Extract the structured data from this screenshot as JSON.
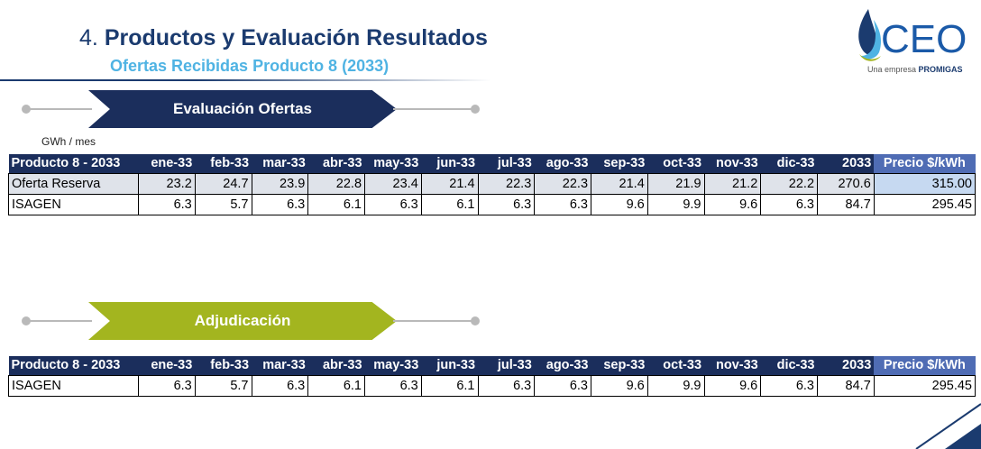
{
  "header": {
    "number": "4.",
    "title": "Productos y Evaluación Resultados",
    "subtitle": "Ofertas Recibidas Producto 8  (2033)"
  },
  "logo": {
    "text": "CEO",
    "tagline_prefix": "Una empresa ",
    "tagline_brand": "PROMIGAS",
    "colors": {
      "text": "#1b5aa8",
      "drop_dark": "#1b3b6f",
      "drop_light": "#4fb3e3",
      "drop_green": "#a3b51f"
    }
  },
  "unit_label": "GWh / mes",
  "banners": {
    "evaluation": {
      "label": "Evaluación Ofertas",
      "color": "#1b2e5c"
    },
    "adjudication": {
      "label": "Adjudicación",
      "color": "#a3b51f"
    }
  },
  "columns": [
    "Producto 8 - 2033",
    "ene-33",
    "feb-33",
    "mar-33",
    "abr-33",
    "may-33",
    "jun-33",
    "jul-33",
    "ago-33",
    "sep-33",
    "oct-33",
    "nov-33",
    "dic-33",
    "2033",
    "Precio $/kWh"
  ],
  "offers_table": {
    "rows": [
      [
        "Oferta Reserva",
        "23.2",
        "24.7",
        "23.9",
        "22.8",
        "23.4",
        "21.4",
        "22.3",
        "22.3",
        "21.4",
        "21.9",
        "21.2",
        "22.2",
        "270.6",
        "315.00"
      ],
      [
        "ISAGEN",
        "6.3",
        "5.7",
        "6.3",
        "6.1",
        "6.3",
        "6.1",
        "6.3",
        "6.3",
        "9.6",
        "9.9",
        "9.6",
        "6.3",
        "84.7",
        "295.45"
      ]
    ]
  },
  "award_table": {
    "rows": [
      [
        "ISAGEN",
        "6.3",
        "5.7",
        "6.3",
        "6.1",
        "6.3",
        "6.1",
        "6.3",
        "6.3",
        "9.6",
        "9.9",
        "9.6",
        "6.3",
        "84.7",
        "295.45"
      ]
    ]
  }
}
